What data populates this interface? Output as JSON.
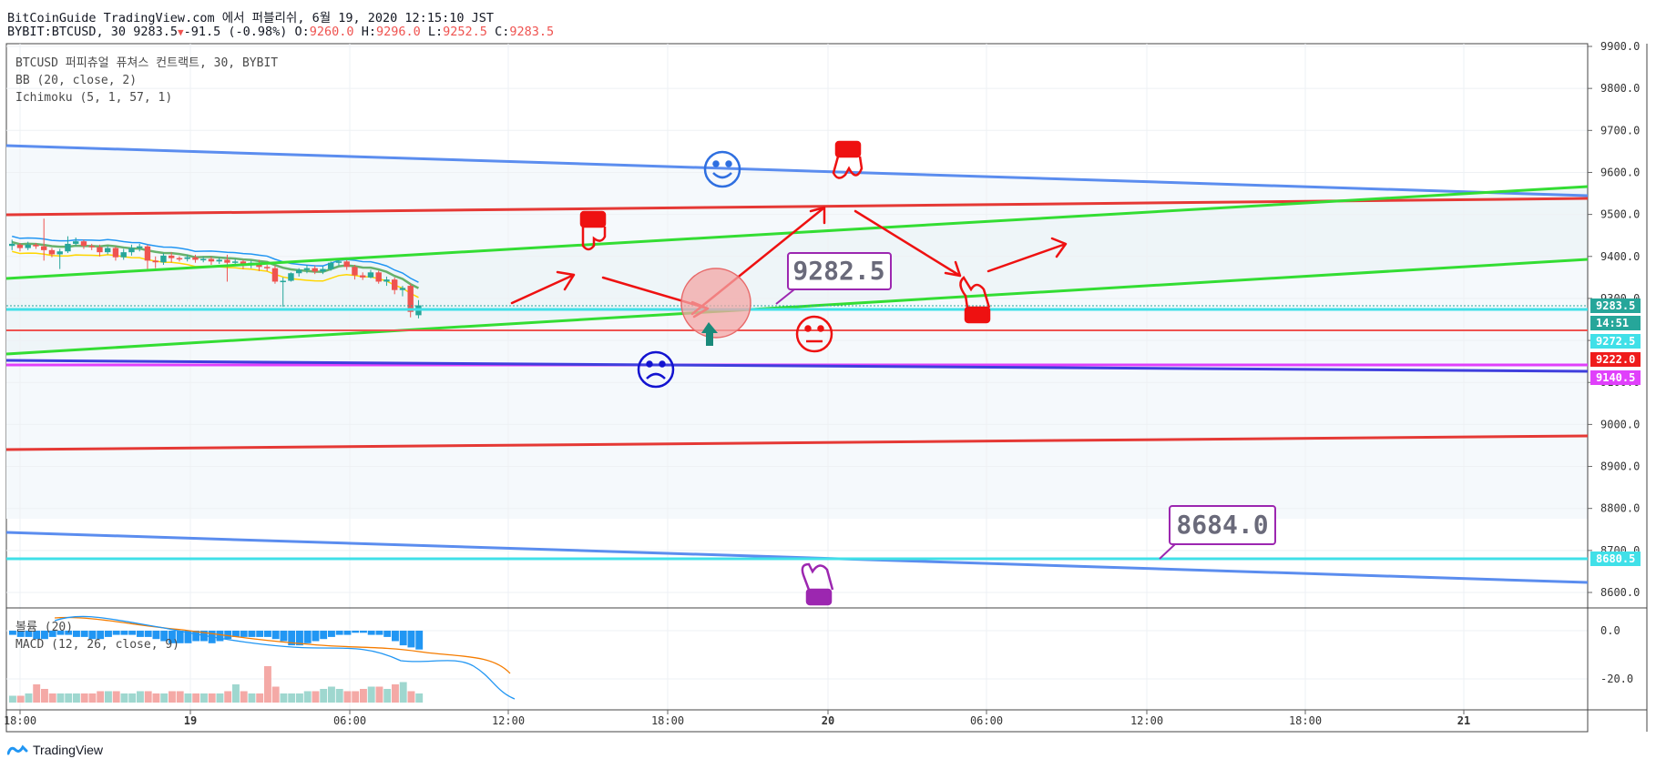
{
  "header": {
    "line1": "BitCoinGuide TradingView.com 에서 퍼블리쉬, 6월 19, 2020 12:15:10 JST",
    "symbol": "BYBIT:BTCUSD, 30",
    "last": "9283.5",
    "change": "-91.5 (-0.98%)",
    "o_label": "O:",
    "o": "9260.0",
    "h_label": "H:",
    "h": "9296.0",
    "l_label": "L:",
    "l": "9252.5",
    "c_label": "C:",
    "c": "9283.5"
  },
  "legend": {
    "line1": "BTCUSD 퍼피츄얼 퓨쳐스 컨트랙트, 30, BYBIT",
    "line2": "BB (20, close, 2)",
    "line3": "Ichimoku (5, 1, 57, 1)",
    "macd_label": "MACD (12, 26, close, 9)",
    "volume_label": "볼륨 (20)"
  },
  "brand": "TradingView",
  "colors": {
    "up": "#26a69a",
    "down": "#ef5350",
    "red_line": "#e53935",
    "green_line": "#33dd33",
    "blue_line": "#5b8def",
    "cyan_line": "#40e0e8",
    "magenta": "#e040fb",
    "purple": "#9c27b0"
  },
  "chart_data": {
    "type": "candlestick",
    "x_ticks": [
      "18:00",
      "19",
      "06:00",
      "12:00",
      "18:00",
      "20",
      "06:00",
      "12:00",
      "18:00",
      "21"
    ],
    "y_ticks": [
      "9900.0",
      "9800.0",
      "9700.0",
      "9600.0",
      "9500.0",
      "9400.0",
      "9300.0",
      "9200.0",
      "9100.0",
      "9000.0",
      "8900.0",
      "8800.0",
      "8700.0",
      "8600.0"
    ],
    "ylim": [
      8570,
      9915
    ],
    "candles": [
      {
        "o": 9425,
        "c": 9430,
        "h": 9440,
        "l": 9415
      },
      {
        "o": 9428,
        "c": 9420,
        "h": 9432,
        "l": 9412
      },
      {
        "o": 9420,
        "c": 9428,
        "h": 9435,
        "l": 9415
      },
      {
        "o": 9428,
        "c": 9424,
        "h": 9432,
        "l": 9418
      },
      {
        "o": 9424,
        "c": 9415,
        "h": 9490,
        "l": 9390
      },
      {
        "o": 9415,
        "c": 9405,
        "h": 9420,
        "l": 9398
      },
      {
        "o": 9405,
        "c": 9412,
        "h": 9418,
        "l": 9370
      },
      {
        "o": 9412,
        "c": 9430,
        "h": 9448,
        "l": 9408
      },
      {
        "o": 9430,
        "c": 9436,
        "h": 9445,
        "l": 9425
      },
      {
        "o": 9436,
        "c": 9425,
        "h": 9440,
        "l": 9418
      },
      {
        "o": 9425,
        "c": 9422,
        "h": 9430,
        "l": 9415
      },
      {
        "o": 9422,
        "c": 9410,
        "h": 9428,
        "l": 9400
      },
      {
        "o": 9410,
        "c": 9420,
        "h": 9425,
        "l": 9405
      },
      {
        "o": 9420,
        "c": 9398,
        "h": 9424,
        "l": 9390
      },
      {
        "o": 9398,
        "c": 9410,
        "h": 9418,
        "l": 9392
      },
      {
        "o": 9410,
        "c": 9420,
        "h": 9428,
        "l": 9402
      },
      {
        "o": 9420,
        "c": 9424,
        "h": 9430,
        "l": 9412
      },
      {
        "o": 9424,
        "c": 9390,
        "h": 9428,
        "l": 9370
      },
      {
        "o": 9390,
        "c": 9386,
        "h": 9400,
        "l": 9372
      },
      {
        "o": 9386,
        "c": 9402,
        "h": 9408,
        "l": 9380
      },
      {
        "o": 9402,
        "c": 9396,
        "h": 9410,
        "l": 9385
      },
      {
        "o": 9396,
        "c": 9394,
        "h": 9400,
        "l": 9388
      },
      {
        "o": 9394,
        "c": 9398,
        "h": 9404,
        "l": 9388
      },
      {
        "o": 9398,
        "c": 9392,
        "h": 9404,
        "l": 9385
      },
      {
        "o": 9392,
        "c": 9394,
        "h": 9400,
        "l": 9386
      },
      {
        "o": 9394,
        "c": 9388,
        "h": 9400,
        "l": 9380
      },
      {
        "o": 9388,
        "c": 9392,
        "h": 9398,
        "l": 9382
      },
      {
        "o": 9392,
        "c": 9385,
        "h": 9404,
        "l": 9340
      },
      {
        "o": 9385,
        "c": 9388,
        "h": 9394,
        "l": 9378
      },
      {
        "o": 9388,
        "c": 9382,
        "h": 9392,
        "l": 9370
      },
      {
        "o": 9382,
        "c": 9385,
        "h": 9390,
        "l": 9372
      },
      {
        "o": 9385,
        "c": 9375,
        "h": 9392,
        "l": 9365
      },
      {
        "o": 9375,
        "c": 9372,
        "h": 9380,
        "l": 9365
      },
      {
        "o": 9372,
        "c": 9340,
        "h": 9378,
        "l": 9335
      },
      {
        "o": 9340,
        "c": 9342,
        "h": 9350,
        "l": 9280
      },
      {
        "o": 9342,
        "c": 9360,
        "h": 9362,
        "l": 9340
      },
      {
        "o": 9360,
        "c": 9368,
        "h": 9372,
        "l": 9352
      },
      {
        "o": 9368,
        "c": 9372,
        "h": 9380,
        "l": 9360
      },
      {
        "o": 9372,
        "c": 9364,
        "h": 9378,
        "l": 9358
      },
      {
        "o": 9364,
        "c": 9370,
        "h": 9376,
        "l": 9358
      },
      {
        "o": 9370,
        "c": 9385,
        "h": 9388,
        "l": 9366
      },
      {
        "o": 9385,
        "c": 9388,
        "h": 9392,
        "l": 9378
      },
      {
        "o": 9388,
        "c": 9375,
        "h": 9392,
        "l": 9368
      },
      {
        "o": 9375,
        "c": 9355,
        "h": 9380,
        "l": 9345
      },
      {
        "o": 9355,
        "c": 9350,
        "h": 9362,
        "l": 9344
      },
      {
        "o": 9350,
        "c": 9362,
        "h": 9368,
        "l": 9348
      },
      {
        "o": 9362,
        "c": 9340,
        "h": 9366,
        "l": 9335
      },
      {
        "o": 9340,
        "c": 9345,
        "h": 9352,
        "l": 9330
      },
      {
        "o": 9345,
        "c": 9320,
        "h": 9350,
        "l": 9310
      },
      {
        "o": 9320,
        "c": 9325,
        "h": 9330,
        "l": 9305
      },
      {
        "o": 9330,
        "c": 9268,
        "h": 9335,
        "l": 9255
      },
      {
        "o": 9260,
        "c": 9283.5,
        "h": 9296,
        "l": 9252.5
      }
    ],
    "price_labels": [
      {
        "value": "9283.5",
        "color": "#26a69a"
      },
      {
        "value": "14:51",
        "color": "#26a69a"
      },
      {
        "value": "9272.5",
        "color": "#40e0e8"
      },
      {
        "value": "9222.0",
        "color": "#ef1c1c"
      },
      {
        "value": "9140.5",
        "color": "#e040fb"
      },
      {
        "value": "8680.5",
        "color": "#40e0e8"
      }
    ],
    "annotations": [
      "9282.5",
      "8684.0"
    ],
    "macd_ticks": [
      "0.0",
      "-20.0"
    ],
    "macd_hist": [
      -2,
      -3,
      -3,
      -4,
      -4,
      -3,
      -2,
      -2,
      -3,
      -3,
      -4,
      -4,
      -3,
      -2,
      -2,
      -2,
      -3,
      -3,
      -4,
      -5,
      -6,
      -6,
      -6,
      -5,
      -5,
      -6,
      -5,
      -4,
      -3,
      -3,
      -3,
      -3,
      -3,
      -4,
      -5,
      -7,
      -7,
      -6,
      -5,
      -4,
      -3,
      -2,
      -2,
      -1,
      -1,
      -2,
      -2,
      -3,
      -5,
      -7,
      -8,
      -9
    ],
    "volume": [
      3,
      3,
      4,
      8,
      6,
      4,
      4,
      4,
      4,
      4,
      4,
      5,
      5,
      5,
      4,
      4,
      5,
      5,
      4,
      4,
      5,
      5,
      4,
      4,
      4,
      4,
      4,
      5,
      8,
      5,
      4,
      4,
      16,
      7,
      4,
      4,
      4,
      5,
      5,
      6,
      7,
      6,
      5,
      5,
      6,
      7,
      7,
      6,
      8,
      9,
      5,
      4
    ]
  }
}
